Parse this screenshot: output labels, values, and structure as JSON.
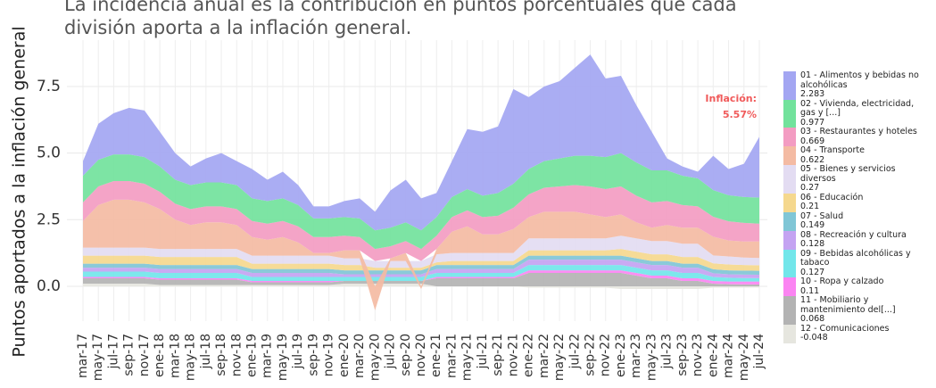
{
  "chart_data": {
    "type": "stacked_area",
    "subtitle_lines": [
      "La incidencia anual es la contribución en puntos porcentuales que cada",
      "división aporta a la inflación general."
    ],
    "y_label": "Puntos aportados a la inflación general",
    "annotation": {
      "title": "Inflación:",
      "value": {
        "value": 5.57,
        "label": "5.57%"
      }
    },
    "categories": [
      "mar-17",
      "may-17",
      "jul-17",
      "sep-17",
      "nov-17",
      "ene-18",
      "mar-18",
      "may-18",
      "jul-18",
      "sep-18",
      "nov-18",
      "ene-19",
      "mar-19",
      "may-19",
      "jul-19",
      "sep-19",
      "nov-19",
      "ene-20",
      "mar-20",
      "may-20",
      "jul-20",
      "sep-20",
      "nov-20",
      "ene-21",
      "mar-21",
      "may-21",
      "jul-21",
      "sep-21",
      "nov-21",
      "ene-22",
      "mar-22",
      "may-22",
      "jul-22",
      "sep-22",
      "nov-22",
      "ene-23",
      "mar-23",
      "may-23",
      "jul-23",
      "sep-23",
      "nov-23",
      "ene-24",
      "mar-24",
      "may-24",
      "jul-24"
    ],
    "ylim": [
      -1.5,
      9.5
    ],
    "yticks": [
      {
        "value": 0,
        "label": "0.0"
      },
      2.5,
      {
        "value": 5,
        "label": "5.0"
      },
      7.5
    ],
    "grid": true,
    "series": [
      {
        "name": "01 - Alimentos y bebidas no alcohólicas",
        "color": "#a3a6f2",
        "values": [
          0.55,
          1.35,
          1.55,
          1.75,
          1.75,
          1.3,
          1.0,
          0.7,
          0.9,
          1.1,
          0.9,
          1.1,
          0.8,
          1.0,
          0.75,
          0.45,
          0.45,
          0.6,
          0.75,
          0.7,
          1.4,
          1.6,
          1.2,
          0.9,
          1.35,
          2.25,
          2.4,
          2.5,
          3.55,
          2.7,
          2.8,
          2.9,
          3.3,
          3.8,
          2.95,
          2.9,
          2.15,
          1.45,
          0.45,
          0.35,
          0.25,
          1.29,
          0.98,
          1.25,
          2.283
        ]
      },
      {
        "name": "02 - Vivienda, electricidad, gas y [...]",
        "color": "#72e29c",
        "values": [
          1.0,
          1.0,
          1.0,
          1.0,
          1.0,
          0.95,
          0.9,
          0.9,
          0.9,
          0.9,
          0.9,
          0.85,
          0.85,
          0.85,
          0.8,
          0.7,
          0.7,
          0.7,
          0.7,
          0.7,
          0.7,
          0.7,
          0.7,
          0.7,
          0.75,
          0.8,
          0.8,
          0.85,
          0.9,
          0.95,
          1.0,
          1.05,
          1.1,
          1.15,
          1.2,
          1.25,
          1.25,
          1.2,
          1.15,
          1.1,
          1.05,
          1.0,
          0.98,
          0.97,
          0.977
        ]
      },
      {
        "name": "03 - Restaurantes y hoteles",
        "color": "#f39cc2",
        "values": [
          0.7,
          0.7,
          0.7,
          0.7,
          0.7,
          0.65,
          0.6,
          0.6,
          0.6,
          0.6,
          0.6,
          0.6,
          0.6,
          0.6,
          0.6,
          0.6,
          0.6,
          0.55,
          0.5,
          0.45,
          0.45,
          0.45,
          0.45,
          0.5,
          0.55,
          0.6,
          0.65,
          0.7,
          0.8,
          0.85,
          0.9,
          0.95,
          1.0,
          1.05,
          1.05,
          1.05,
          1.0,
          0.95,
          0.9,
          0.85,
          0.8,
          0.75,
          0.72,
          0.7,
          0.669
        ]
      },
      {
        "name": "04 - Transporte",
        "color": "#f4bba3",
        "values": [
          1.0,
          1.6,
          1.8,
          1.8,
          1.7,
          1.5,
          1.1,
          0.9,
          1.0,
          1.0,
          0.9,
          0.7,
          0.6,
          0.7,
          0.5,
          0.1,
          0.1,
          0.3,
          0.3,
          -0.9,
          0.1,
          0.3,
          -0.1,
          0.2,
          0.8,
          1.0,
          0.7,
          0.7,
          0.9,
          0.8,
          1.0,
          1.0,
          1.0,
          0.9,
          0.8,
          0.8,
          0.6,
          0.5,
          0.6,
          0.6,
          0.6,
          0.7,
          0.6,
          0.6,
          0.622
        ]
      },
      {
        "name": "05 - Bienes y servicios diversos",
        "color": "#e3dcf2",
        "values": [
          0.3,
          0.3,
          0.3,
          0.3,
          0.3,
          0.3,
          0.3,
          0.3,
          0.3,
          0.3,
          0.3,
          0.3,
          0.3,
          0.3,
          0.3,
          0.3,
          0.3,
          0.25,
          0.25,
          0.25,
          0.25,
          0.25,
          0.25,
          0.3,
          0.3,
          0.3,
          0.3,
          0.3,
          0.3,
          0.45,
          0.45,
          0.45,
          0.45,
          0.45,
          0.45,
          0.5,
          0.5,
          0.5,
          0.5,
          0.5,
          0.5,
          0.3,
          0.3,
          0.28,
          0.27
        ]
      },
      {
        "name": "06 - Educación",
        "color": "#f5d88e",
        "values": [
          0.3,
          0.3,
          0.3,
          0.3,
          0.3,
          0.3,
          0.3,
          0.3,
          0.3,
          0.3,
          0.3,
          0.2,
          0.2,
          0.2,
          0.2,
          0.2,
          0.2,
          0.2,
          0.2,
          0.1,
          0.1,
          0.1,
          0.1,
          0.1,
          0.15,
          0.15,
          0.15,
          0.15,
          0.15,
          0.2,
          0.2,
          0.2,
          0.2,
          0.2,
          0.2,
          0.25,
          0.25,
          0.25,
          0.25,
          0.25,
          0.25,
          0.22,
          0.22,
          0.21,
          0.21
        ]
      },
      {
        "name": "07 - Salud",
        "color": "#80c6d6",
        "values": [
          0.15,
          0.15,
          0.15,
          0.15,
          0.15,
          0.15,
          0.15,
          0.15,
          0.15,
          0.15,
          0.15,
          0.15,
          0.15,
          0.15,
          0.15,
          0.15,
          0.15,
          0.15,
          0.15,
          0.15,
          0.15,
          0.15,
          0.15,
          0.15,
          0.15,
          0.15,
          0.15,
          0.15,
          0.15,
          0.15,
          0.15,
          0.15,
          0.15,
          0.15,
          0.15,
          0.15,
          0.15,
          0.15,
          0.15,
          0.15,
          0.15,
          0.15,
          0.15,
          0.15,
          0.149
        ]
      },
      {
        "name": "08 - Recreación y cultura",
        "color": "#c4a3f2",
        "values": [
          0.15,
          0.15,
          0.15,
          0.15,
          0.15,
          0.15,
          0.15,
          0.15,
          0.15,
          0.15,
          0.15,
          0.15,
          0.15,
          0.15,
          0.15,
          0.15,
          0.15,
          0.1,
          0.1,
          0.1,
          0.1,
          0.1,
          0.1,
          0.15,
          0.15,
          0.15,
          0.15,
          0.15,
          0.15,
          0.2,
          0.2,
          0.2,
          0.2,
          0.2,
          0.2,
          0.2,
          0.2,
          0.2,
          0.2,
          0.2,
          0.2,
          0.14,
          0.13,
          0.13,
          0.128
        ]
      },
      {
        "name": "09 - Bebidas alcohólicas y tabaco",
        "color": "#72e6ea",
        "values": [
          0.2,
          0.2,
          0.2,
          0.2,
          0.2,
          0.2,
          0.2,
          0.2,
          0.2,
          0.2,
          0.2,
          0.15,
          0.15,
          0.15,
          0.15,
          0.15,
          0.15,
          0.15,
          0.15,
          0.15,
          0.15,
          0.15,
          0.15,
          0.15,
          0.15,
          0.15,
          0.15,
          0.15,
          0.15,
          0.2,
          0.2,
          0.2,
          0.2,
          0.2,
          0.2,
          0.2,
          0.2,
          0.2,
          0.2,
          0.2,
          0.2,
          0.15,
          0.14,
          0.13,
          0.127
        ]
      },
      {
        "name": "10 - Ropa y calzado",
        "color": "#fb84f2",
        "values": [
          0.05,
          0.05,
          0.05,
          0.05,
          0.05,
          0.05,
          0.05,
          0.05,
          0.05,
          0.05,
          0.05,
          0.05,
          0.05,
          0.05,
          0.05,
          0.05,
          0.05,
          0,
          0,
          0,
          0,
          0,
          0,
          0.05,
          0.05,
          0.05,
          0.05,
          0.05,
          0.05,
          0.1,
          0.1,
          0.1,
          0.1,
          0.1,
          0.1,
          0.1,
          0.1,
          0.1,
          0.1,
          0.1,
          0.1,
          0.1,
          0.1,
          0.11,
          0.11
        ]
      },
      {
        "name": "11 - Mobiliario y mantenimiento del[...]",
        "color": "#b3b3b3",
        "values": [
          0.2,
          0.2,
          0.2,
          0.2,
          0.2,
          0.2,
          0.2,
          0.2,
          0.2,
          0.2,
          0.2,
          0.1,
          0.1,
          0.1,
          0.1,
          0.1,
          0.1,
          0.1,
          0.1,
          0.1,
          0.1,
          0.1,
          0.1,
          0.3,
          0.3,
          0.3,
          0.3,
          0.3,
          0.3,
          0.5,
          0.5,
          0.5,
          0.5,
          0.5,
          0.5,
          0.5,
          0.4,
          0.3,
          0.3,
          0.2,
          0.2,
          0.1,
          0.08,
          0.07,
          0.068
        ]
      },
      {
        "name": "12 - Comunicaciones",
        "color": "#e6e6df",
        "values": [
          0.1,
          0.1,
          0.1,
          0.1,
          0.1,
          0.05,
          0.05,
          0.05,
          0.05,
          0.05,
          0.05,
          0.05,
          0.05,
          0.05,
          0.05,
          0.05,
          0.05,
          0.1,
          0.1,
          0.1,
          0.1,
          0.1,
          0.1,
          0,
          0,
          0,
          0,
          0,
          0,
          -0.05,
          -0.05,
          -0.05,
          -0.05,
          -0.05,
          -0.05,
          -0.1,
          -0.1,
          -0.1,
          -0.1,
          -0.1,
          -0.1,
          -0.05,
          -0.05,
          -0.05,
          -0.048
        ]
      }
    ]
  }
}
